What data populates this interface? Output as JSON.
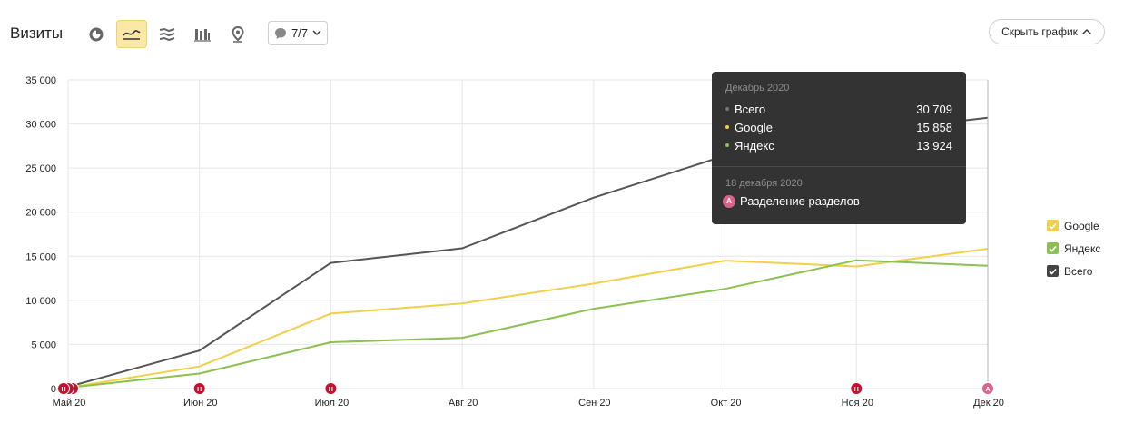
{
  "header": {
    "title": "Визиты",
    "filter_label": "7/7",
    "hide_chart_label": "Скрыть график"
  },
  "toolbar": {
    "icons": [
      "pie-chart-icon",
      "line-chart-icon",
      "stacked-area-icon",
      "bar-chart-icon",
      "map-pin-icon"
    ],
    "active": "line-chart-icon"
  },
  "chart_data": {
    "type": "line",
    "x": [
      "Май 20",
      "Июн 20",
      "Июл 20",
      "Авг 20",
      "Сен 20",
      "Окт 20",
      "Ноя 20",
      "Дек 20"
    ],
    "ylim": [
      0,
      35000
    ],
    "yticks": [
      "0",
      "5 000",
      "10 000",
      "15 000",
      "20 000",
      "25 000",
      "30 000",
      "35 000"
    ],
    "ytick_values": [
      0,
      5000,
      10000,
      15000,
      20000,
      25000,
      30000,
      35000
    ],
    "grid": true,
    "legend_position": "right",
    "series": [
      {
        "name": "Google",
        "color": "#f2cf4a",
        "values": [
          100,
          2500,
          8500,
          9650,
          11900,
          14500,
          13850,
          15858
        ]
      },
      {
        "name": "Яндекс",
        "color": "#8cc152",
        "values": [
          100,
          1700,
          5250,
          5750,
          9050,
          11300,
          14550,
          13924
        ]
      },
      {
        "name": "Всего",
        "color": "#555555",
        "values": [
          200,
          4300,
          14250,
          15900,
          21650,
          26400,
          29000,
          30709
        ]
      }
    ],
    "annotations": [
      {
        "x": "Май 20",
        "label": "Н",
        "color": "#c8102e"
      },
      {
        "x": "Июн 20",
        "label": "Н",
        "color": "#c8102e"
      },
      {
        "x": "Июл 20",
        "label": "Н",
        "color": "#c8102e"
      },
      {
        "x": "Ноя 20",
        "label": "Н",
        "color": "#c8102e"
      },
      {
        "x": "Дек 20",
        "label": "А",
        "color": "#d9638b"
      }
    ]
  },
  "legend": [
    {
      "name": "Google",
      "color": "#f2cf4a"
    },
    {
      "name": "Яндекс",
      "color": "#8cc152"
    },
    {
      "name": "Всего",
      "color": "#444444"
    }
  ],
  "tooltip": {
    "date": "Декабрь 2020",
    "rows": [
      {
        "name": "Всего",
        "value": "30 709",
        "color": "#444444"
      },
      {
        "name": "Google",
        "value": "15 858",
        "color": "#f2cf4a"
      },
      {
        "name": "Яндекс",
        "value": "13 924",
        "color": "#8cc152"
      }
    ],
    "annotation_date": "18 декабря 2020",
    "annotation_icon": "А",
    "annotation_text": "Разделение разделов"
  }
}
